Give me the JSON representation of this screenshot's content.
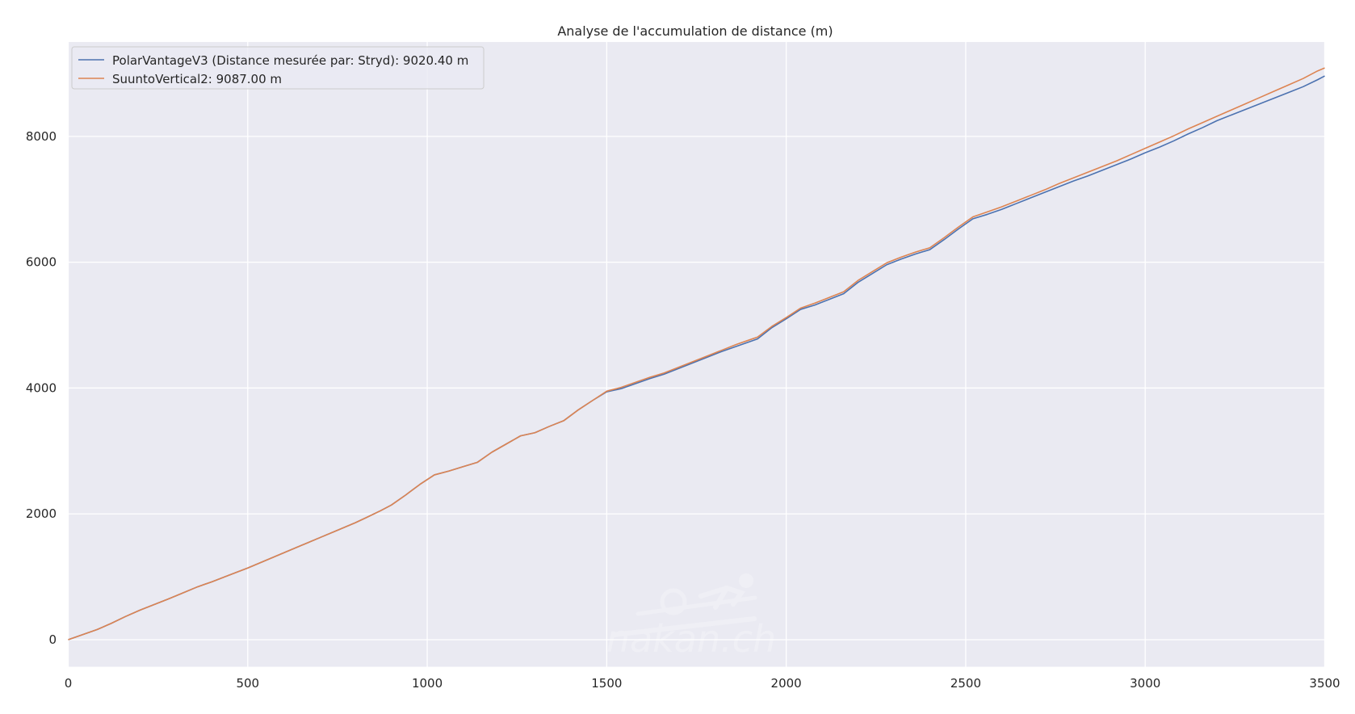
{
  "chart_data": {
    "type": "line",
    "title": "Analyse de l'accumulation de distance (m)",
    "xlabel": "",
    "ylabel": "",
    "xlim": [
      0,
      3500
    ],
    "ylim": [
      -430,
      9500
    ],
    "x_ticks": [
      0,
      500,
      1000,
      1500,
      2000,
      2500,
      3000,
      3500
    ],
    "y_ticks": [
      0,
      2000,
      4000,
      6000,
      8000
    ],
    "x_tick_labels": [
      "0",
      "500",
      "1000",
      "1500",
      "2000",
      "2500",
      "3000",
      "3500"
    ],
    "y_tick_labels": [
      "0",
      "2000",
      "4000",
      "6000",
      "8000"
    ],
    "grid": true,
    "legend_position": "top-left",
    "watermark": "nakan.ch",
    "series": [
      {
        "name": "PolarVantageV3 (Distance mesurée par: Stryd): 9020.40 m",
        "color": "#4c72b0",
        "points": [
          [
            0,
            0
          ],
          [
            40,
            80
          ],
          [
            80,
            160
          ],
          [
            120,
            260
          ],
          [
            160,
            370
          ],
          [
            200,
            470
          ],
          [
            240,
            560
          ],
          [
            280,
            650
          ],
          [
            320,
            745
          ],
          [
            360,
            840
          ],
          [
            400,
            920
          ],
          [
            450,
            1030
          ],
          [
            500,
            1140
          ],
          [
            550,
            1260
          ],
          [
            600,
            1380
          ],
          [
            650,
            1500
          ],
          [
            700,
            1620
          ],
          [
            750,
            1740
          ],
          [
            800,
            1860
          ],
          [
            830,
            1940
          ],
          [
            870,
            2050
          ],
          [
            900,
            2140
          ],
          [
            940,
            2300
          ],
          [
            980,
            2470
          ],
          [
            1020,
            2620
          ],
          [
            1060,
            2680
          ],
          [
            1100,
            2750
          ],
          [
            1140,
            2820
          ],
          [
            1180,
            2980
          ],
          [
            1220,
            3110
          ],
          [
            1260,
            3240
          ],
          [
            1300,
            3290
          ],
          [
            1340,
            3390
          ],
          [
            1380,
            3480
          ],
          [
            1420,
            3650
          ],
          [
            1460,
            3800
          ],
          [
            1500,
            3940
          ],
          [
            1540,
            3990
          ],
          [
            1580,
            4070
          ],
          [
            1620,
            4150
          ],
          [
            1660,
            4220
          ],
          [
            1700,
            4310
          ],
          [
            1740,
            4400
          ],
          [
            1780,
            4490
          ],
          [
            1820,
            4580
          ],
          [
            1860,
            4660
          ],
          [
            1900,
            4740
          ],
          [
            1920,
            4780
          ],
          [
            1960,
            4960
          ],
          [
            2000,
            5100
          ],
          [
            2040,
            5250
          ],
          [
            2080,
            5320
          ],
          [
            2120,
            5410
          ],
          [
            2160,
            5500
          ],
          [
            2200,
            5680
          ],
          [
            2240,
            5820
          ],
          [
            2280,
            5960
          ],
          [
            2320,
            6050
          ],
          [
            2360,
            6130
          ],
          [
            2400,
            6200
          ],
          [
            2440,
            6360
          ],
          [
            2480,
            6530
          ],
          [
            2520,
            6690
          ],
          [
            2560,
            6760
          ],
          [
            2600,
            6840
          ],
          [
            2640,
            6930
          ],
          [
            2680,
            7020
          ],
          [
            2720,
            7110
          ],
          [
            2760,
            7200
          ],
          [
            2800,
            7290
          ],
          [
            2840,
            7370
          ],
          [
            2880,
            7460
          ],
          [
            2920,
            7550
          ],
          [
            2960,
            7640
          ],
          [
            3000,
            7740
          ],
          [
            3040,
            7830
          ],
          [
            3080,
            7930
          ],
          [
            3120,
            8040
          ],
          [
            3160,
            8140
          ],
          [
            3200,
            8250
          ],
          [
            3240,
            8340
          ],
          [
            3280,
            8430
          ],
          [
            3320,
            8520
          ],
          [
            3360,
            8610
          ],
          [
            3400,
            8700
          ],
          [
            3440,
            8790
          ],
          [
            3480,
            8900
          ],
          [
            3500,
            8960
          ]
        ]
      },
      {
        "name": "SuuntoVertical2: 9087.00 m",
        "color": "#dd8452",
        "points": [
          [
            0,
            0
          ],
          [
            40,
            80
          ],
          [
            80,
            160
          ],
          [
            120,
            260
          ],
          [
            160,
            370
          ],
          [
            200,
            470
          ],
          [
            240,
            560
          ],
          [
            280,
            650
          ],
          [
            320,
            745
          ],
          [
            360,
            840
          ],
          [
            400,
            920
          ],
          [
            450,
            1030
          ],
          [
            500,
            1140
          ],
          [
            550,
            1260
          ],
          [
            600,
            1380
          ],
          [
            650,
            1500
          ],
          [
            700,
            1620
          ],
          [
            750,
            1740
          ],
          [
            800,
            1860
          ],
          [
            830,
            1940
          ],
          [
            870,
            2050
          ],
          [
            900,
            2140
          ],
          [
            940,
            2300
          ],
          [
            980,
            2470
          ],
          [
            1020,
            2620
          ],
          [
            1060,
            2680
          ],
          [
            1100,
            2750
          ],
          [
            1140,
            2820
          ],
          [
            1180,
            2980
          ],
          [
            1220,
            3110
          ],
          [
            1260,
            3240
          ],
          [
            1300,
            3290
          ],
          [
            1340,
            3390
          ],
          [
            1380,
            3480
          ],
          [
            1420,
            3650
          ],
          [
            1460,
            3800
          ],
          [
            1500,
            3950
          ],
          [
            1540,
            4010
          ],
          [
            1580,
            4090
          ],
          [
            1620,
            4170
          ],
          [
            1660,
            4240
          ],
          [
            1700,
            4330
          ],
          [
            1740,
            4420
          ],
          [
            1780,
            4510
          ],
          [
            1820,
            4600
          ],
          [
            1860,
            4690
          ],
          [
            1900,
            4770
          ],
          [
            1920,
            4810
          ],
          [
            1960,
            4980
          ],
          [
            2000,
            5120
          ],
          [
            2040,
            5270
          ],
          [
            2080,
            5350
          ],
          [
            2120,
            5440
          ],
          [
            2160,
            5530
          ],
          [
            2200,
            5710
          ],
          [
            2240,
            5850
          ],
          [
            2280,
            5990
          ],
          [
            2320,
            6080
          ],
          [
            2360,
            6160
          ],
          [
            2400,
            6230
          ],
          [
            2440,
            6390
          ],
          [
            2480,
            6560
          ],
          [
            2520,
            6720
          ],
          [
            2560,
            6800
          ],
          [
            2600,
            6880
          ],
          [
            2640,
            6970
          ],
          [
            2680,
            7060
          ],
          [
            2720,
            7150
          ],
          [
            2760,
            7250
          ],
          [
            2800,
            7340
          ],
          [
            2840,
            7430
          ],
          [
            2880,
            7520
          ],
          [
            2920,
            7610
          ],
          [
            2960,
            7710
          ],
          [
            3000,
            7810
          ],
          [
            3040,
            7910
          ],
          [
            3080,
            8010
          ],
          [
            3120,
            8120
          ],
          [
            3160,
            8220
          ],
          [
            3200,
            8320
          ],
          [
            3240,
            8420
          ],
          [
            3280,
            8520
          ],
          [
            3320,
            8620
          ],
          [
            3360,
            8720
          ],
          [
            3400,
            8820
          ],
          [
            3440,
            8920
          ],
          [
            3480,
            9040
          ],
          [
            3500,
            9087
          ]
        ]
      }
    ]
  }
}
